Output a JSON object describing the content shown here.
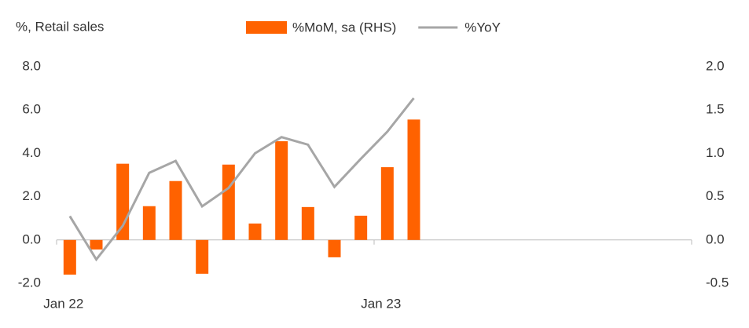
{
  "chart_data": {
    "type": "bar-line",
    "y_label": "%, Retail sales",
    "categories": [
      "Jan 22",
      null,
      null,
      null,
      null,
      null,
      null,
      null,
      null,
      null,
      null,
      null,
      "Jan 23",
      null,
      null,
      null,
      null,
      null,
      null,
      null,
      null,
      null,
      null,
      null
    ],
    "series": [
      {
        "name": "%MoM, sa (RHS)",
        "type": "bar",
        "axis": "y2",
        "color": "#ff6200",
        "values": [
          -0.4,
          -0.11,
          0.88,
          0.39,
          0.68,
          -0.39,
          0.87,
          0.19,
          1.14,
          0.38,
          -0.2,
          0.28,
          0.84,
          1.39,
          null,
          null,
          null,
          null,
          null,
          null,
          null,
          null,
          null,
          null
        ]
      },
      {
        "name": "%YoY",
        "type": "line",
        "color": "#a6a6a6",
        "values": [
          1.1,
          -0.9,
          0.65,
          3.1,
          3.65,
          1.55,
          2.4,
          4.0,
          4.75,
          4.4,
          2.45,
          3.75,
          5.0,
          6.55,
          null,
          null,
          null,
          null,
          null,
          null,
          null,
          null,
          null,
          null
        ]
      }
    ],
    "ylim": [
      -2,
      8
    ],
    "yticks": [
      {
        "value": -2,
        "label": "-2.0"
      },
      {
        "value": 0,
        "label": "0.0"
      },
      {
        "value": 2,
        "label": "2.0"
      },
      {
        "value": 4,
        "label": "4.0"
      },
      {
        "value": 6,
        "label": "6.0"
      },
      {
        "value": 8,
        "label": "8.0"
      }
    ],
    "y2lim": [
      -0.5,
      2
    ],
    "y2ticks": [
      {
        "value": -0.5,
        "label": "-0.5"
      },
      {
        "value": 0,
        "label": "0.0"
      },
      {
        "value": 0.5,
        "label": "0.5"
      },
      {
        "value": 1,
        "label": "1.0"
      },
      {
        "value": 1.5,
        "label": "1.5"
      },
      {
        "value": 2,
        "label": "2.0"
      }
    ]
  }
}
